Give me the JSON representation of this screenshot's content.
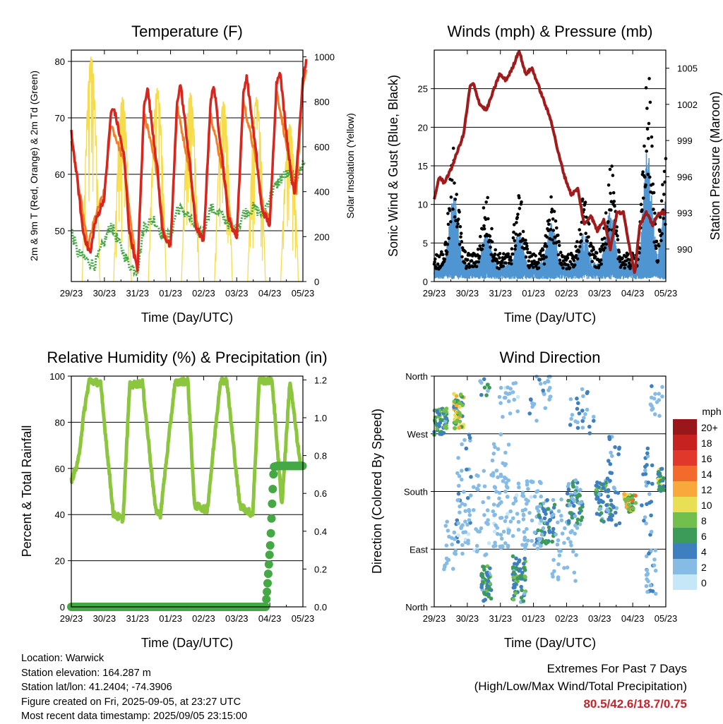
{
  "chart_data": [
    {
      "type": "line",
      "title": "Temperature (F)",
      "xlabel": "Time (Day/UTC)",
      "ylabel": "2m & 9m T (Red, Orange) & 2m Td (Green)",
      "y2label": "Solar Insolation (Yellow)",
      "x_tick_labels": [
        "29/23",
        "30/23",
        "31/23",
        "01/23",
        "02/23",
        "03/23",
        "04/23",
        "05/23"
      ],
      "ylim": [
        41,
        82
      ],
      "y_ticks": [
        50,
        60,
        70,
        80
      ],
      "y2lim": [
        0,
        1030
      ],
      "y2_ticks": [
        0,
        200,
        400,
        600,
        800,
        1000
      ],
      "grid": "horizontal",
      "series": [
        {
          "color": "#d7261e",
          "x": [
            0,
            0.2,
            0.35,
            0.5,
            0.58,
            0.7,
            1,
            1.2,
            1.3,
            1.6,
            1.75,
            2,
            2.2,
            2.3,
            2.6,
            2.75,
            3,
            3.2,
            3.3,
            3.6,
            3.75,
            4,
            4.2,
            4.3,
            4.6,
            4.75,
            5,
            5.2,
            5.3,
            5.6,
            5.75,
            6,
            6.2,
            6.3,
            6.6,
            6.75,
            7,
            7.1
          ],
          "y": [
            67.5,
            58,
            50,
            47,
            46,
            51,
            56,
            71,
            71.5,
            63,
            50,
            43,
            72,
            75.5,
            61,
            50,
            47,
            73,
            76,
            61,
            51,
            48,
            72,
            76,
            61,
            52,
            49,
            74,
            77.5,
            63,
            54,
            51,
            76,
            78.5,
            62,
            56,
            77,
            80
          ]
        },
        {
          "color": "#f07f26",
          "x": [
            0,
            0.3,
            0.5,
            0.7,
            1,
            1.2,
            1.6,
            1.8,
            2,
            2.2,
            2.6,
            2.8,
            3,
            3.2,
            3.6,
            3.8,
            4,
            4.2,
            4.6,
            4.8,
            5,
            5.2,
            5.6,
            5.8,
            6,
            6.2,
            6.6,
            6.8,
            7,
            7.1
          ],
          "y": [
            66,
            55,
            47,
            52,
            57,
            69,
            62,
            51,
            43,
            71,
            60,
            50,
            47,
            72,
            60,
            51,
            48,
            71,
            60,
            52,
            49,
            73,
            62,
            54,
            52,
            75,
            62,
            57,
            76,
            78
          ]
        },
        {
          "color": "#44a845",
          "x": [
            0,
            0.2,
            0.4,
            0.7,
            1,
            1.2,
            1.5,
            1.75,
            2,
            2.2,
            2.5,
            2.8,
            3,
            3.2,
            3.5,
            3.8,
            4,
            4.2,
            4.5,
            4.8,
            5,
            5.2,
            5.5,
            5.8,
            6,
            6.3,
            6.5,
            6.8,
            7,
            7.1
          ],
          "y": [
            50,
            46,
            45,
            44,
            48,
            51,
            47,
            44,
            43,
            51,
            52,
            49,
            49,
            54,
            53,
            50,
            50,
            54,
            53,
            51,
            50,
            53,
            54,
            53,
            56,
            59,
            60,
            59,
            62,
            62
          ]
        },
        {
          "color": "#f6dc4c",
          "peaks_x": [
            0.6,
            1.55,
            2.6,
            3.6,
            4.6,
            5.6,
            6.6
          ],
          "peaks_y2": [
            1000,
            820,
            860,
            840,
            800,
            820,
            700
          ]
        }
      ]
    },
    {
      "type": "scatter",
      "title": "Winds (mph) & Pressure (mb)",
      "xlabel": "Time (Day/UTC)",
      "ylabel": "Sonic Wind & Gust (Blue, Black)",
      "y2label": "Station Pressure (Maroon)",
      "x_tick_labels": [
        "29/23",
        "30/23",
        "31/23",
        "01/23",
        "02/23",
        "03/23",
        "04/23",
        "05/23"
      ],
      "ylim": [
        0,
        30
      ],
      "y_ticks": [
        0,
        5,
        10,
        15,
        20,
        25
      ],
      "y2lim": [
        987.3,
        1006.5
      ],
      "y2_ticks": [
        990,
        993,
        996,
        999,
        1002,
        1005
      ],
      "grid": "horizontal",
      "pressure": {
        "x": [
          0,
          0.15,
          0.3,
          0.5,
          0.7,
          0.9,
          1.1,
          1.2,
          1.4,
          1.6,
          1.8,
          2.0,
          2.2,
          2.4,
          2.6,
          2.8,
          3.0,
          3.2,
          3.4,
          3.6,
          3.8,
          4.0,
          4.2,
          4.4,
          4.6,
          4.8,
          5.0,
          5.2,
          5.4,
          5.6,
          5.8,
          6.0,
          6.15,
          6.3,
          6.5,
          6.7,
          6.9,
          7.1
        ],
        "y": [
          994,
          996,
          995.5,
          996.5,
          998,
          999.5,
          1003.5,
          1003.7,
          1002,
          1001.5,
          1003,
          1004.5,
          1004,
          1005,
          1006.5,
          1004.5,
          1005,
          1003.5,
          1002,
          1000.5,
          998,
          996,
          994.5,
          995,
          992,
          992.8,
          991.5,
          992.5,
          990,
          993,
          993,
          990,
          988,
          992,
          993,
          992,
          993,
          993
        ]
      },
      "wind_peaks": {
        "x": [
          0.6,
          1.6,
          2.6,
          3.6,
          4.6,
          5.4,
          6.55,
          7.1
        ],
        "gust": [
          17,
          11,
          11,
          11,
          11,
          15,
          27,
          16
        ],
        "sustained": [
          11,
          6,
          6,
          7,
          6,
          9,
          16,
          10
        ]
      }
    },
    {
      "type": "line",
      "title": "Relative Humidity (%) & Precipitation (in)",
      "xlabel": "Time (Day/UTC)",
      "ylabel": "Percent & Total Rainfall",
      "x_tick_labels": [
        "29/23",
        "30/23",
        "31/23",
        "01/23",
        "02/23",
        "03/23",
        "04/23",
        "05/23"
      ],
      "ylim": [
        0,
        100
      ],
      "y_ticks": [
        0,
        20,
        40,
        60,
        80,
        100
      ],
      "y2lim": [
        0,
        1.22
      ],
      "y2_ticks": [
        "0.0",
        "0.2",
        "0.4",
        "0.6",
        "0.8",
        "1.0",
        "1.2"
      ],
      "grid": "horizontal",
      "series": [
        {
          "name": "Relative Humidity",
          "color": "#8cc63f",
          "x": [
            0,
            0.2,
            0.4,
            0.55,
            0.9,
            1.3,
            1.6,
            1.8,
            2.2,
            2.6,
            2.75,
            3.2,
            3.6,
            3.8,
            4.2,
            4.6,
            4.8,
            5.2,
            5.6,
            5.8,
            6.2,
            6.5,
            6.75,
            7.1
          ],
          "y": [
            55,
            62,
            85,
            98,
            97,
            40,
            38,
            96,
            97,
            42,
            40,
            97,
            98,
            44,
            42,
            98,
            98,
            44,
            40,
            98,
            98,
            44,
            98,
            58
          ]
        },
        {
          "name": "Total Precipitation",
          "color": "#44a845",
          "x": [
            0,
            6.0,
            6.05,
            6.15,
            6.25,
            6.35,
            7.15
          ],
          "y": [
            0,
            0,
            0.1,
            0.35,
            0.74,
            0.745,
            0.745
          ]
        }
      ]
    },
    {
      "type": "scatter",
      "title": "Wind Direction",
      "xlabel": "Time (Day/UTC)",
      "ylabel": "Direction (Colored By Speed)",
      "x_tick_labels": [
        "29/23",
        "30/23",
        "31/23",
        "01/23",
        "02/23",
        "03/23",
        "04/23",
        "05/23"
      ],
      "y_ticks": [
        "North",
        "West",
        "South",
        "East",
        "North"
      ],
      "grid": "horizontal",
      "colorbar": {
        "title": "mph",
        "labels": [
          "20+",
          "18",
          "16",
          "14",
          "12",
          "10",
          "8",
          "6",
          "4",
          "2",
          "0"
        ],
        "colors": [
          "#99171b",
          "#c6221f",
          "#e0392b",
          "#f26b2d",
          "#f9a93b",
          "#e8df55",
          "#72bf4e",
          "#3c9b58",
          "#3e7fbf",
          "#86bbe6",
          "#c6e7f8"
        ]
      }
    }
  ],
  "info": {
    "location": "Location: Warwick",
    "elevation": "Station elevation: 164.287 m",
    "latlon": "Station lat/lon: 41.2404; -74.3906",
    "created": "Figure created on Fri, 2025-09-05, at 23:27 UTC",
    "recent": "Most recent data timestamp: 2025/09/05 23:15:00"
  },
  "extremes": {
    "title": "Extremes For Past 7 Days",
    "subtitle": "(High/Low/Max Wind/Total Precipitation)",
    "values": "80.5/42.6/18.7/0.75"
  }
}
